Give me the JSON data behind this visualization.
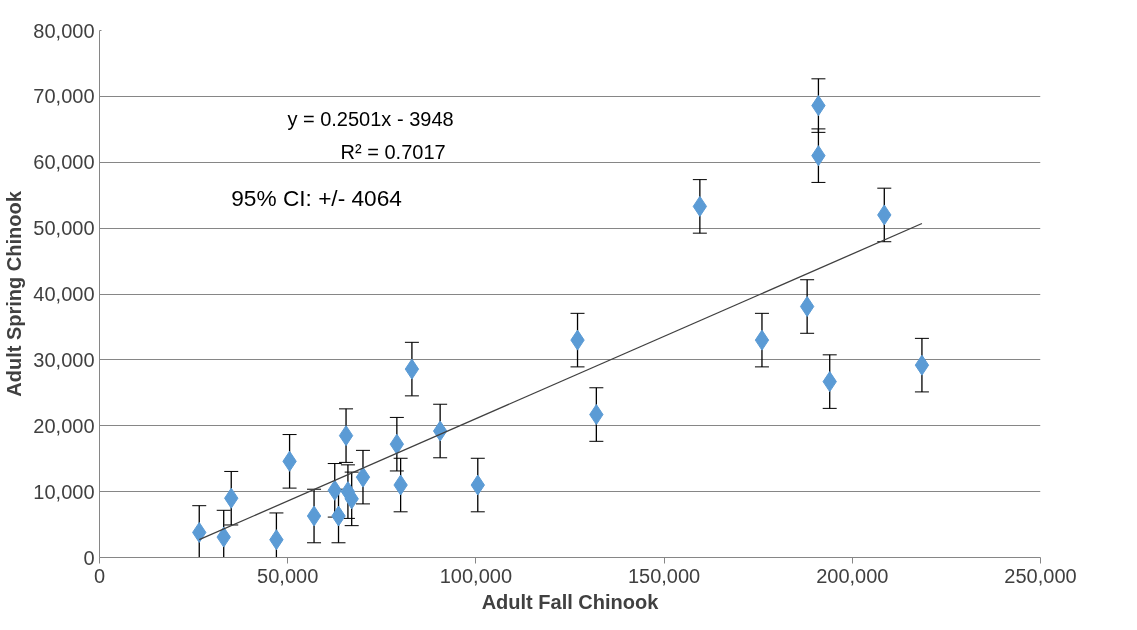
{
  "chart_data": {
    "type": "scatter",
    "xlabel": "Adult Fall Chinook",
    "ylabel": "Adult Spring Chinook",
    "xlim": [
      0,
      250000
    ],
    "xticks": [
      {
        "value": 0,
        "label": "0"
      },
      {
        "value": 50000,
        "label": "50,000"
      },
      {
        "value": 100000,
        "label": "100,000"
      },
      {
        "value": 150000,
        "label": "150,000"
      },
      {
        "value": 200000,
        "label": "200,000"
      },
      {
        "value": 250000,
        "label": "250,000"
      }
    ],
    "ylim": [
      0,
      80000
    ],
    "yticks": [
      {
        "value": 0,
        "label": "0"
      },
      {
        "value": 10000,
        "label": "10,000"
      },
      {
        "value": 20000,
        "label": "20,000"
      },
      {
        "value": 30000,
        "label": "30,000"
      },
      {
        "value": 40000,
        "label": "40,000"
      },
      {
        "value": 50000,
        "label": "50,000"
      },
      {
        "value": 60000,
        "label": "60,000"
      },
      {
        "value": 70000,
        "label": "70,000"
      },
      {
        "value": 80000,
        "label": "80,000"
      }
    ],
    "grid": "y",
    "annotations": [
      "y = 0.2501x - 3948",
      "R² = 0.7017",
      "95% CI: +/- 4064"
    ],
    "series": [
      {
        "color": "#5b9bd5",
        "marker": "diamond",
        "x": [
          26500,
          33000,
          35000,
          47000,
          50500,
          57000,
          62500,
          63500,
          65500,
          66000,
          67000,
          70000,
          79000,
          80000,
          83000,
          90500,
          100500,
          127000,
          132000,
          159500,
          176000,
          188000,
          191000,
          191000,
          194000,
          208500,
          218500
        ],
        "values": [
          3800,
          3100,
          9000,
          2700,
          14600,
          6300,
          10200,
          6300,
          18500,
          10000,
          8900,
          12200,
          17200,
          11000,
          28600,
          19200,
          11000,
          33000,
          21700,
          53300,
          33000,
          38100,
          68600,
          61000,
          26700,
          52000,
          29200
        ],
        "errors": [
          4064,
          4064,
          4064,
          4064,
          4064,
          4064,
          4064,
          4064,
          4064,
          4064,
          4064,
          4064,
          4064,
          4064,
          4064,
          4064,
          4064,
          4064,
          4064,
          4064,
          4064,
          4064,
          4064,
          4064,
          4064,
          4064,
          4064
        ]
      },
      {
        "type": "line",
        "color": "#404040",
        "x": [
          26500,
          218500
        ],
        "values": [
          2700,
          50700
        ],
        "line_style": "solid"
      }
    ]
  }
}
